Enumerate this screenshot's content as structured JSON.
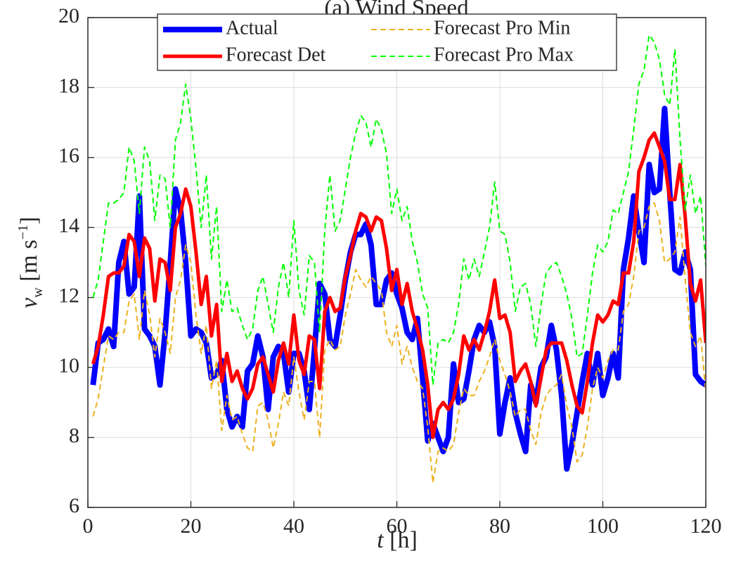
{
  "chart_data": {
    "type": "line",
    "title": "(a) Wind Speed",
    "xlabel": [
      "t",
      "[h]"
    ],
    "ylabel": [
      "v",
      "w",
      "[m s",
      "−1",
      "]"
    ],
    "xlim": [
      0,
      120
    ],
    "xticks": [
      0,
      20,
      40,
      60,
      80,
      100,
      120
    ],
    "ylim": [
      6,
      20
    ],
    "yticks": [
      6,
      8,
      10,
      12,
      14,
      16,
      18,
      20
    ],
    "grid": true,
    "legend": "top",
    "legend_columns": 2,
    "x": [
      1,
      2,
      3,
      4,
      5,
      6,
      7,
      8,
      9,
      10,
      11,
      12,
      13,
      14,
      15,
      16,
      17,
      18,
      19,
      20,
      21,
      22,
      23,
      24,
      25,
      26,
      27,
      28,
      29,
      30,
      31,
      32,
      33,
      34,
      35,
      36,
      37,
      38,
      39,
      40,
      41,
      42,
      43,
      44,
      45,
      46,
      47,
      48,
      49,
      50,
      51,
      52,
      53,
      54,
      55,
      56,
      57,
      58,
      59,
      60,
      61,
      62,
      63,
      64,
      65,
      66,
      67,
      68,
      69,
      70,
      71,
      72,
      73,
      74,
      75,
      76,
      77,
      78,
      79,
      80,
      81,
      82,
      83,
      84,
      85,
      86,
      87,
      88,
      89,
      90,
      91,
      92,
      93,
      94,
      95,
      96,
      97,
      98,
      99,
      100,
      101,
      102,
      103,
      104,
      105,
      106,
      107,
      108,
      109,
      110,
      111,
      112,
      113,
      114,
      115,
      116,
      117,
      118,
      119,
      120
    ],
    "series": [
      {
        "name": "Actual",
        "color": "#0000ff",
        "width": 8,
        "dashed": false,
        "values": [
          9.5,
          10.7,
          10.8,
          11.1,
          10.6,
          13.0,
          13.6,
          12.1,
          12.3,
          14.9,
          11.1,
          10.9,
          10.6,
          9.5,
          11.0,
          13.0,
          15.1,
          14.5,
          13.0,
          10.9,
          11.1,
          11.0,
          10.7,
          9.7,
          9.8,
          10.2,
          8.8,
          8.3,
          8.6,
          8.3,
          9.9,
          10.1,
          10.9,
          10.3,
          8.8,
          10.3,
          10.6,
          10.4,
          9.3,
          10.4,
          10.4,
          9.9,
          8.8,
          10.5,
          12.4,
          12.1,
          10.8,
          10.6,
          11.5,
          12.5,
          13.3,
          13.8,
          13.8,
          14.1,
          13.5,
          11.8,
          11.8,
          12.5,
          12.7,
          12.1,
          11.7,
          11.0,
          10.8,
          11.4,
          9.7,
          7.9,
          8.4,
          8.0,
          7.6,
          8.0,
          10.1,
          9.0,
          9.1,
          9.9,
          10.8,
          11.2,
          11.0,
          11.3,
          10.6,
          8.1,
          9.0,
          9.7,
          8.7,
          8.1,
          7.6,
          9.5,
          9.0,
          10.0,
          10.3,
          11.2,
          10.5,
          9.2,
          7.1,
          7.8,
          8.7,
          9.6,
          10.4,
          9.5,
          10.4,
          9.2,
          9.7,
          10.4,
          9.7,
          12.8,
          13.7,
          14.9,
          13.9,
          13.0,
          15.8,
          15.0,
          15.1,
          17.4,
          15.0,
          12.8,
          12.7,
          13.3,
          12.8,
          9.8,
          9.6,
          9.5
        ]
      },
      {
        "name": "Forecast Det",
        "color": "#ff0000",
        "width": 5,
        "dashed": false,
        "values": [
          10.1,
          10.6,
          11.5,
          12.6,
          12.7,
          12.7,
          12.9,
          13.8,
          13.6,
          12.6,
          13.7,
          13.4,
          11.9,
          13.1,
          13.0,
          12.2,
          14.0,
          14.4,
          15.1,
          14.6,
          13.3,
          11.8,
          12.6,
          10.9,
          11.8,
          9.6,
          10.4,
          9.6,
          9.9,
          9.4,
          9.1,
          9.4,
          10.1,
          10.3,
          9.8,
          9.3,
          10.2,
          10.7,
          10.1,
          11.5,
          10.2,
          9.8,
          10.9,
          10.8,
          9.4,
          11.6,
          12.0,
          11.6,
          11.7,
          12.6,
          13.2,
          13.9,
          14.4,
          14.3,
          13.9,
          14.3,
          14.2,
          13.4,
          12.2,
          12.8,
          11.8,
          12.4,
          11.6,
          11.1,
          10.5,
          9.5,
          8.0,
          8.8,
          9.0,
          8.8,
          9.1,
          9.8,
          10.9,
          10.5,
          10.8,
          10.5,
          11.0,
          11.6,
          12.5,
          11.4,
          11.5,
          11.0,
          9.6,
          9.9,
          10.1,
          9.6,
          8.9,
          9.7,
          10.5,
          10.7,
          10.7,
          10.7,
          10.2,
          9.5,
          8.9,
          8.7,
          9.6,
          10.7,
          11.5,
          11.3,
          11.5,
          11.9,
          11.8,
          12.7,
          12.7,
          13.6,
          15.6,
          16.0,
          16.5,
          16.7,
          16.3,
          15.9,
          14.8,
          14.8,
          15.8,
          14.3,
          12.4,
          11.9,
          12.5,
          10.7
        ]
      },
      {
        "name": "Forecast Pro Min",
        "color": "#edb120",
        "width": 2,
        "dashed": true,
        "values": [
          8.6,
          9.1,
          10.0,
          10.9,
          10.8,
          11.0,
          11.0,
          11.9,
          12.1,
          10.8,
          12.2,
          11.5,
          10.3,
          11.4,
          11.0,
          10.4,
          12.0,
          12.5,
          13.5,
          13.0,
          11.5,
          10.4,
          11.2,
          9.4,
          10.2,
          8.2,
          9.2,
          8.5,
          8.6,
          8.1,
          7.7,
          7.6,
          8.9,
          9.0,
          8.5,
          7.7,
          8.4,
          9.3,
          8.9,
          10.3,
          9.3,
          8.5,
          9.6,
          9.6,
          8.0,
          10.5,
          10.8,
          10.5,
          10.6,
          11.5,
          12.1,
          12.8,
          12.5,
          12.3,
          12.6,
          12.4,
          12.2,
          11.0,
          10.6,
          11.2,
          10.1,
          10.6,
          10.0,
          9.6,
          9.4,
          8.3,
          6.7,
          7.6,
          7.7,
          7.6,
          7.8,
          8.7,
          9.4,
          9.2,
          9.2,
          9.6,
          9.9,
          10.3,
          10.8,
          10.2,
          9.8,
          9.3,
          8.6,
          8.8,
          8.8,
          8.2,
          7.8,
          8.7,
          9.2,
          9.4,
          9.5,
          9.8,
          8.9,
          8.3,
          7.3,
          7.5,
          8.3,
          9.4,
          10.0,
          9.7,
          10.2,
          10.5,
          10.5,
          11.6,
          11.8,
          12.6,
          13.9,
          14.0,
          14.6,
          14.7,
          14.2,
          13.0,
          13.1,
          13.3,
          14.3,
          12.5,
          11.0,
          10.6,
          10.9,
          9.3
        ]
      },
      {
        "name": "Forecast Pro Max",
        "color": "#00ff00",
        "width": 2,
        "dashed": true,
        "values": [
          12.0,
          12.5,
          13.6,
          14.7,
          14.7,
          14.8,
          15.0,
          16.3,
          15.9,
          14.4,
          16.3,
          15.9,
          14.2,
          15.5,
          15.4,
          14.0,
          16.5,
          17.0,
          18.1,
          17.1,
          15.7,
          14.0,
          15.5,
          13.1,
          14.6,
          11.6,
          12.5,
          11.6,
          11.7,
          11.2,
          10.8,
          11.1,
          12.2,
          12.6,
          11.8,
          11.0,
          12.3,
          13.0,
          12.0,
          14.2,
          12.2,
          11.5,
          13.2,
          13.0,
          11.0,
          13.9,
          15.5,
          13.9,
          14.2,
          15.1,
          16.0,
          16.7,
          17.2,
          17.0,
          16.3,
          17.1,
          16.8,
          16.1,
          14.4,
          15.1,
          14.2,
          14.6,
          13.6,
          13.0,
          12.1,
          11.7,
          9.5,
          10.7,
          10.8,
          10.7,
          11.0,
          11.8,
          13.1,
          12.5,
          13.1,
          12.6,
          13.3,
          14.0,
          15.3,
          13.9,
          13.8,
          13.0,
          11.6,
          12.3,
          12.4,
          11.8,
          10.6,
          11.8,
          12.7,
          12.9,
          13.0,
          12.6,
          12.1,
          11.4,
          10.3,
          10.4,
          11.5,
          12.7,
          13.5,
          13.3,
          13.6,
          14.5,
          14.4,
          15.0,
          15.6,
          16.8,
          18.1,
          18.5,
          19.5,
          19.3,
          18.8,
          17.8,
          17.5,
          19.1,
          16.5,
          14.5,
          15.5,
          14.4,
          14.9,
          12.9
        ]
      }
    ]
  }
}
